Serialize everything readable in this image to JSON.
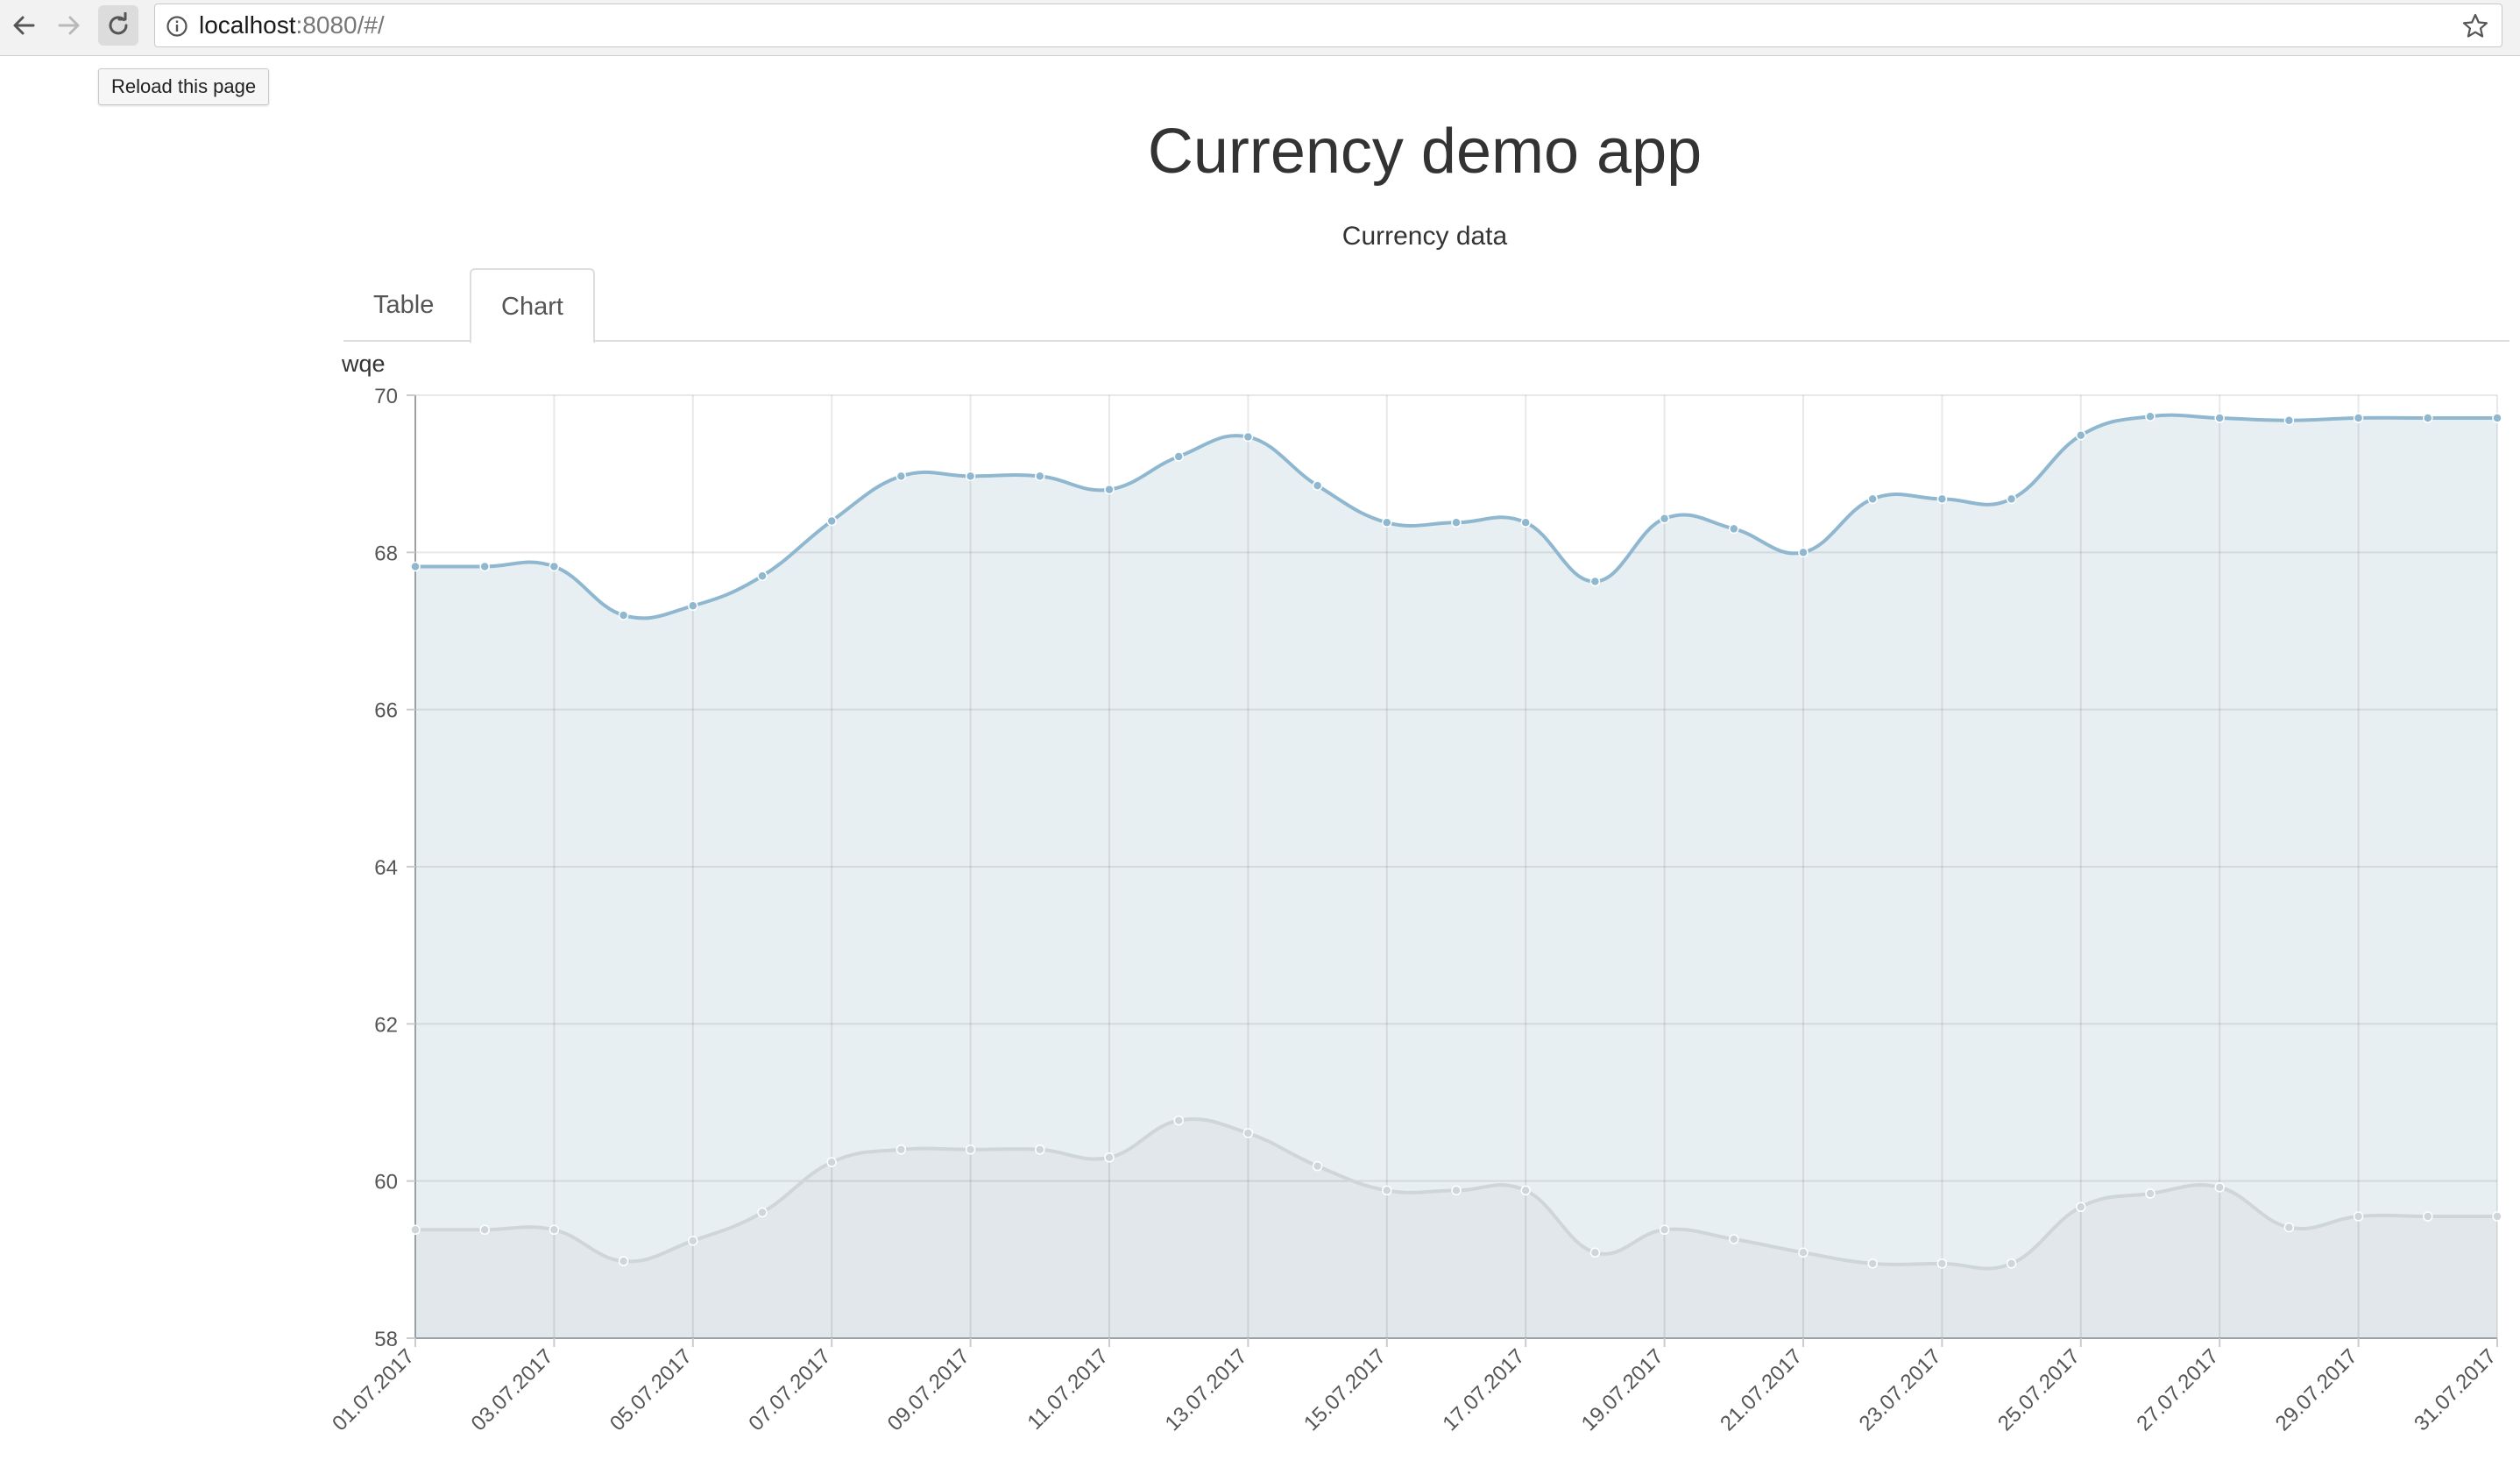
{
  "browser": {
    "url_host": "localhost",
    "url_rest": ":8080/#/",
    "tooltip": "Reload this page",
    "icons": {
      "back": "arrow-left-icon",
      "forward": "arrow-right-icon",
      "reload": "reload-icon",
      "info": "info-icon",
      "star": "star-icon"
    }
  },
  "page": {
    "title": "Currency demo app",
    "subtitle": "Currency data",
    "tabs": [
      {
        "label": "Table",
        "active": false
      },
      {
        "label": "Chart",
        "active": true
      }
    ]
  },
  "chart_data": {
    "type": "area",
    "ylabel": "wqe",
    "ylim": [
      58,
      70
    ],
    "yticks": [
      58,
      60,
      62,
      64,
      66,
      68,
      70
    ],
    "grid": true,
    "x": [
      "01.07.2017",
      "02.07.2017",
      "03.07.2017",
      "04.07.2017",
      "05.07.2017",
      "06.07.2017",
      "07.07.2017",
      "08.07.2017",
      "09.07.2017",
      "10.07.2017",
      "11.07.2017",
      "12.07.2017",
      "13.07.2017",
      "14.07.2017",
      "15.07.2017",
      "16.07.2017",
      "17.07.2017",
      "18.07.2017",
      "19.07.2017",
      "20.07.2017",
      "21.07.2017",
      "22.07.2017",
      "23.07.2017",
      "24.07.2017",
      "25.07.2017",
      "26.07.2017",
      "27.07.2017",
      "28.07.2017",
      "29.07.2017",
      "30.07.2017",
      "31.07.2017"
    ],
    "xtick_labels": [
      "01.07.2017",
      "03.07.2017",
      "05.07.2017",
      "07.07.2017",
      "09.07.2017",
      "11.07.2017",
      "13.07.2017",
      "15.07.2017",
      "17.07.2017",
      "19.07.2017",
      "21.07.2017",
      "23.07.2017",
      "25.07.2017",
      "27.07.2017",
      "29.07.2017",
      "31.07.2017"
    ],
    "series": [
      {
        "values": [
          67.82,
          67.82,
          67.82,
          67.2,
          67.32,
          67.7,
          68.4,
          68.97,
          68.97,
          68.97,
          68.8,
          69.22,
          69.47,
          68.85,
          68.38,
          68.38,
          68.38,
          67.63,
          68.43,
          68.3,
          68.0,
          68.68,
          68.68,
          68.68,
          69.49,
          69.73,
          69.71,
          69.68,
          69.71,
          69.71,
          69.71
        ],
        "color": "#8fb8d0",
        "fill": "#e8eff3"
      },
      {
        "values": [
          59.38,
          59.38,
          59.38,
          58.98,
          59.24,
          59.6,
          60.24,
          60.4,
          60.4,
          60.4,
          60.3,
          60.77,
          60.61,
          60.19,
          59.88,
          59.88,
          59.88,
          59.09,
          59.38,
          59.26,
          59.09,
          58.95,
          58.95,
          58.95,
          59.67,
          59.84,
          59.92,
          59.41,
          59.55,
          59.55,
          59.55
        ],
        "color": "#cfd6da",
        "fill": "#e1e7ea"
      }
    ]
  }
}
